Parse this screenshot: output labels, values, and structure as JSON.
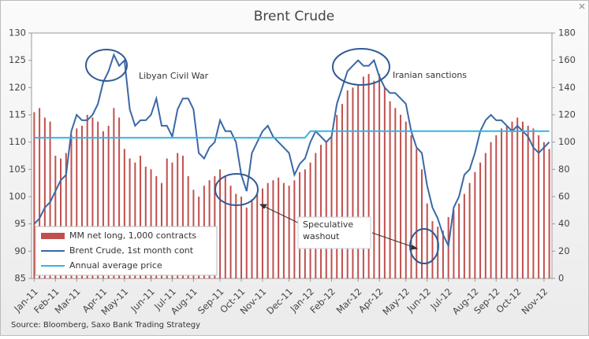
{
  "chart_data": {
    "type": "combo",
    "title": "Brent Crude",
    "source": "Source: Bloomberg, Saxo Bank Trading Strategy",
    "annotations": [
      "Libyan Civil War",
      "Iranian sanctions",
      "Speculative washout"
    ],
    "categories": [
      "Jan-11",
      null,
      null,
      null,
      "Feb-11",
      null,
      null,
      null,
      "Mar-11",
      null,
      null,
      null,
      null,
      "Apr-11",
      null,
      null,
      null,
      "May-11",
      null,
      null,
      null,
      null,
      "Jun-11",
      null,
      null,
      null,
      "Jul-11",
      null,
      null,
      null,
      "Aug-11",
      null,
      null,
      null,
      null,
      "Sep-11",
      null,
      null,
      null,
      "Oct-11",
      null,
      null,
      null,
      "Nov-11",
      null,
      null,
      null,
      null,
      "Dec-11",
      null,
      null,
      null,
      "Jan-12",
      null,
      null,
      null,
      "Feb-12",
      null,
      null,
      null,
      null,
      "Mar-12",
      null,
      null,
      null,
      "Apr-12",
      null,
      null,
      null,
      null,
      "May-12",
      null,
      null,
      null,
      "Jun-12",
      null,
      null,
      null,
      "Jul-12",
      null,
      null,
      null,
      null,
      "Aug-12",
      null,
      null,
      null,
      "Sep-12",
      null,
      null,
      null,
      "Oct-12",
      null,
      null,
      null,
      null,
      "Nov-12",
      null
    ],
    "ylim": [
      85,
      130
    ],
    "yticks": [
      85,
      90,
      95,
      100,
      105,
      110,
      115,
      120,
      125,
      130
    ],
    "y2lim": [
      0,
      180
    ],
    "y2ticks": [
      0,
      20,
      40,
      60,
      80,
      100,
      120,
      140,
      160,
      180
    ],
    "series": [
      {
        "name": "MM net long, 1,000 contracts",
        "type": "bar",
        "axis": "y2",
        "color": "#c0504d",
        "values": [
          122,
          125,
          118,
          115,
          90,
          88,
          92,
          105,
          110,
          112,
          120,
          118,
          115,
          108,
          112,
          125,
          118,
          95,
          88,
          85,
          90,
          82,
          80,
          75,
          70,
          88,
          85,
          92,
          90,
          75,
          65,
          60,
          68,
          72,
          75,
          80,
          75,
          68,
          62,
          60,
          52,
          58,
          62,
          66,
          70,
          72,
          74,
          70,
          68,
          72,
          78,
          80,
          85,
          92,
          98,
          100,
          105,
          120,
          128,
          138,
          140,
          142,
          148,
          150,
          145,
          150,
          140,
          130,
          125,
          120,
          115,
          105,
          95,
          80,
          55,
          42,
          38,
          35,
          45,
          50,
          55,
          62,
          70,
          78,
          85,
          92,
          100,
          105,
          110,
          112,
          115,
          118,
          115,
          112,
          110,
          105,
          100,
          95
        ]
      },
      {
        "name": "Brent Crude, 1st month cont",
        "type": "line",
        "color": "#3a68a6",
        "values": [
          95,
          96,
          98,
          99,
          101,
          103,
          104,
          112,
          115,
          114,
          114,
          115,
          117,
          121,
          123,
          126,
          124,
          125,
          116,
          113,
          114,
          114,
          115,
          118,
          113,
          113,
          111,
          116,
          118,
          118,
          116,
          108,
          107,
          109,
          110,
          114,
          112,
          112,
          110,
          104,
          101,
          108,
          110,
          112,
          113,
          111,
          110,
          109,
          108,
          104,
          106,
          107,
          110,
          112,
          111,
          110,
          111,
          117,
          120,
          123,
          124,
          125,
          124,
          124,
          125,
          122,
          120,
          119,
          119,
          118,
          117,
          112,
          109,
          108,
          102,
          98,
          96,
          93,
          91,
          98,
          100,
          104,
          105,
          108,
          112,
          114,
          115,
          114,
          114,
          113,
          112,
          113,
          112,
          111,
          109,
          108,
          109,
          110
        ]
      },
      {
        "name": "Annual average price",
        "type": "line",
        "color": "#33b5e5",
        "values": [
          110.8,
          110.8,
          110.8,
          110.8,
          110.8,
          110.8,
          110.8,
          110.8,
          110.8,
          110.8,
          110.8,
          110.8,
          110.8,
          110.8,
          110.8,
          110.8,
          110.8,
          110.8,
          110.8,
          110.8,
          110.8,
          110.8,
          110.8,
          110.8,
          110.8,
          110.8,
          110.8,
          110.8,
          110.8,
          110.8,
          110.8,
          110.8,
          110.8,
          110.8,
          110.8,
          110.8,
          110.8,
          110.8,
          110.8,
          110.8,
          110.8,
          110.8,
          110.8,
          110.8,
          110.8,
          110.8,
          110.8,
          110.8,
          110.8,
          110.8,
          110.8,
          110.8,
          112,
          112,
          112,
          112,
          112,
          112,
          112,
          112,
          112,
          112,
          112,
          112,
          112,
          112,
          112,
          112,
          112,
          112,
          112,
          112,
          112,
          112,
          112,
          112,
          112,
          112,
          112,
          112,
          112,
          112,
          112,
          112,
          112,
          112,
          112,
          112,
          112,
          112,
          112,
          112,
          112,
          112,
          112,
          112,
          112,
          112
        ]
      }
    ],
    "legend": "bottom-left"
  }
}
